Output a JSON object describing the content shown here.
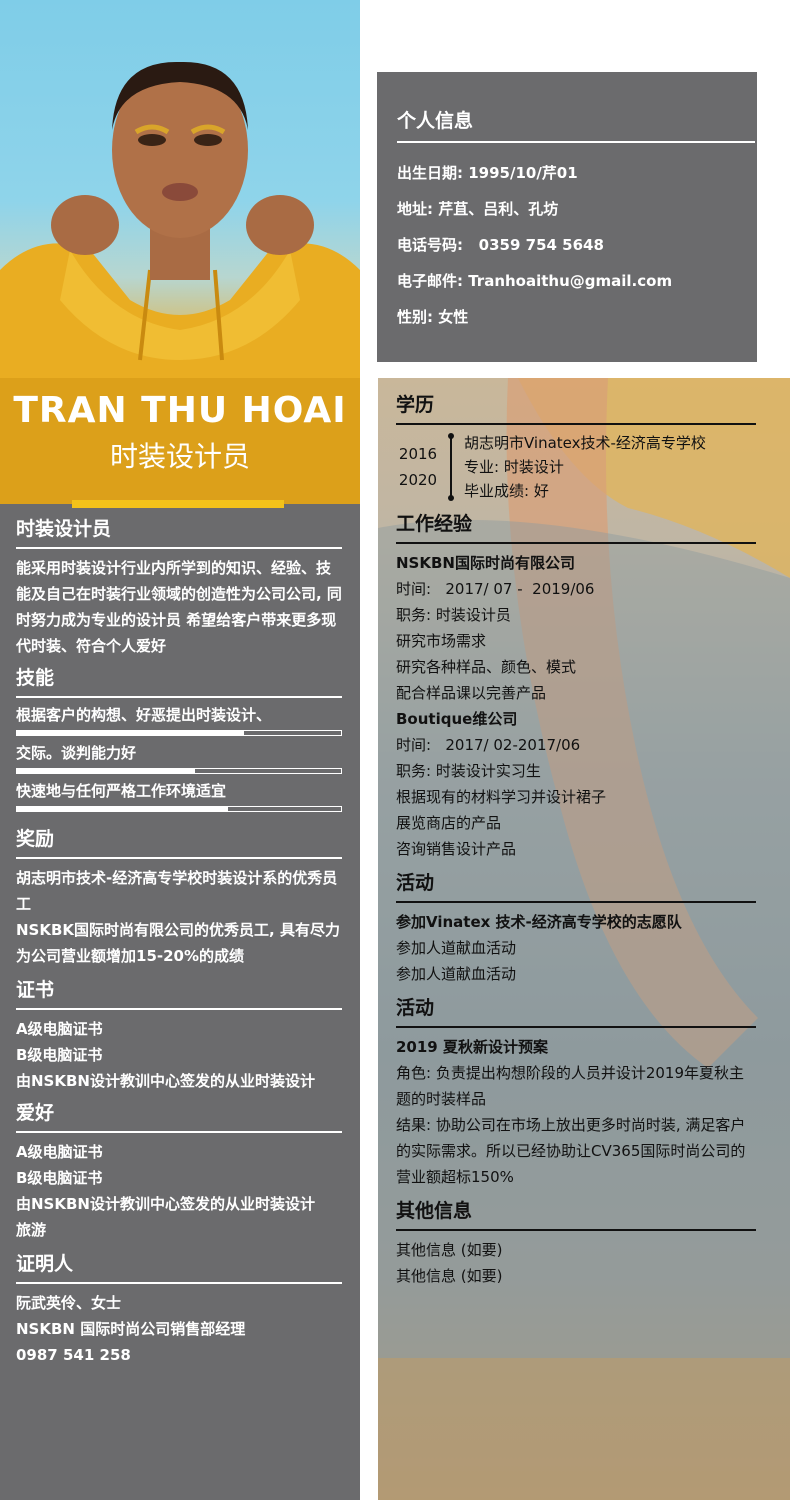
{
  "profile": {
    "name": "TRAN THU HOAI",
    "job_title": "时装设计员"
  },
  "personal_info": {
    "heading": "个人信息",
    "lines": [
      "出生日期: 1995/10/芹01",
      "地址: 芹苴、吕利、孔坊",
      "电话号码:   0359 754 5648",
      "电子邮件: Tranhoaithu@gmail.com",
      "性别: 女性"
    ]
  },
  "left": {
    "objective": {
      "heading": "时装设计员",
      "text": "能采用时装设计行业内所学到的知识、经验、技能及自己在时装行业领域的创造性为公司公司, 同时努力成为专业的设计员 希望给客户带来更多现代时装、符合个人爱好"
    },
    "skills": {
      "heading": "技能",
      "items": [
        {
          "label": "根据客户的构想、好恶提出时装设计、",
          "level": 0.7
        },
        {
          "label": "交际。谈判能力好",
          "level": 0.55
        },
        {
          "label": "快速地与任何严格工作环境适宜",
          "level": 0.65
        }
      ]
    },
    "awards": {
      "heading": "奖励",
      "lines": [
        "胡志明市技术-经济高专学校时装设计系的优秀员工",
        "NSKBK国际时尚有限公司的优秀员工, 具有尽力为公司营业额增加15-20%的成绩"
      ]
    },
    "certificates": {
      "heading": "证书",
      "lines": [
        "A级电脑证书",
        "B级电脑证书",
        "由NSKBN设计教训中心签发的从业时装设计"
      ]
    },
    "hobbies": {
      "heading": "爱好",
      "lines": [
        "A级电脑证书",
        "B级电脑证书",
        "由NSKBN设计教训中心签发的从业时装设计",
        "旅游"
      ]
    },
    "references": {
      "heading": "证明人",
      "lines": [
        "阮武英伶、女士",
        "NSKBN 国际时尚公司销售部经理",
        "0987 541 258"
      ]
    }
  },
  "right": {
    "education": {
      "heading": "学历",
      "year_start": "2016",
      "year_end": "2020",
      "lines": [
        "胡志明市Vinatex技术-经济高专学校",
        "专业: 时装设计",
        "毕业成绩: 好"
      ]
    },
    "experience": {
      "heading": "工作经验",
      "jobs": [
        {
          "company": "NSKBN国际时尚有限公司",
          "lines": [
            "时间:   2017/ 07 -  2019/06",
            "职务: 时装设计员",
            "研究市场需求",
            "研究各种样品、颜色、模式",
            "配合样品课以完善产品"
          ]
        },
        {
          "company": "Boutique维公司",
          "lines": [
            "时间:   2017/ 02-2017/06",
            "职务: 时装设计实习生",
            "根据现有的材料学习并设计裙子",
            "展览商店的产品",
            "咨询销售设计产品"
          ]
        }
      ]
    },
    "activities": {
      "heading": "活动",
      "title": "参加Vinatex 技术-经济高专学校的志愿队",
      "lines": [
        "参加人道献血活动",
        "参加人道献血活动"
      ]
    },
    "projects": {
      "heading": "活动",
      "title": "2019 夏秋新设计预案",
      "lines": [
        "角色: 负责提出构想阶段的人员并设计2019年夏秋主题的时装样品",
        "结果: 协助公司在市场上放出更多时尚时装, 满足客户的实际需求。所以已经协助让CV365国际时尚公司的营业额超标150%"
      ]
    },
    "other": {
      "heading": "其他信息",
      "lines": [
        "其他信息 (如要)",
        "其他信息 (如要)"
      ]
    }
  },
  "colors": {
    "panel_gray": "#6b6b6d",
    "accent_gold": "#f3c21a",
    "text_light": "#ffffff",
    "text_dark": "#111111"
  }
}
